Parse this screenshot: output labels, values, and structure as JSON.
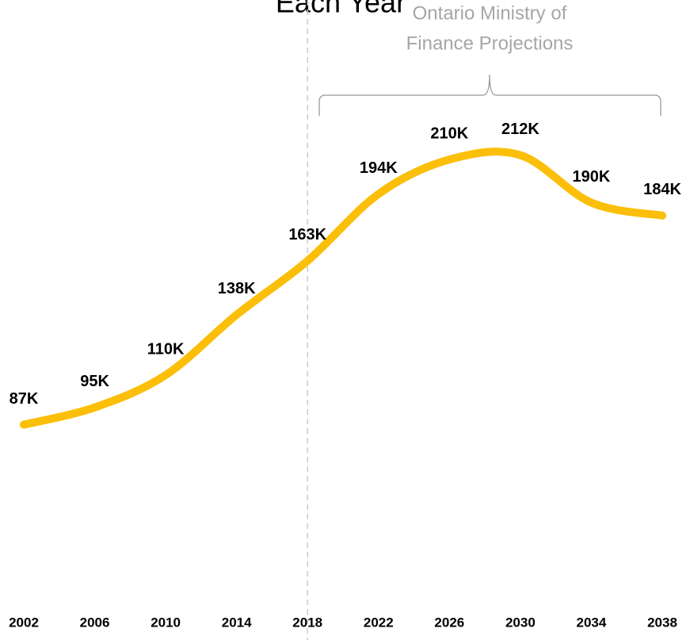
{
  "chart_data": {
    "type": "line",
    "title": "Each Year",
    "annotation": [
      "Ontario Ministry of",
      "Finance Projections"
    ],
    "x": [
      2002,
      2006,
      2010,
      2014,
      2018,
      2022,
      2026,
      2030,
      2034,
      2038
    ],
    "series": [
      {
        "name": "Projections",
        "color": "#fbbf0a",
        "values": [
          87,
          95,
          110,
          138,
          163,
          194,
          210,
          212,
          190,
          184
        ],
        "value_labels": [
          "87K",
          "95K",
          "110K",
          "138K",
          "163K",
          "194K",
          "210K",
          "212K",
          "190K",
          "184K"
        ]
      }
    ],
    "xlim": [
      2002,
      2038
    ],
    "ylim": [
      0,
      284
    ],
    "reference_x": 2018
  }
}
